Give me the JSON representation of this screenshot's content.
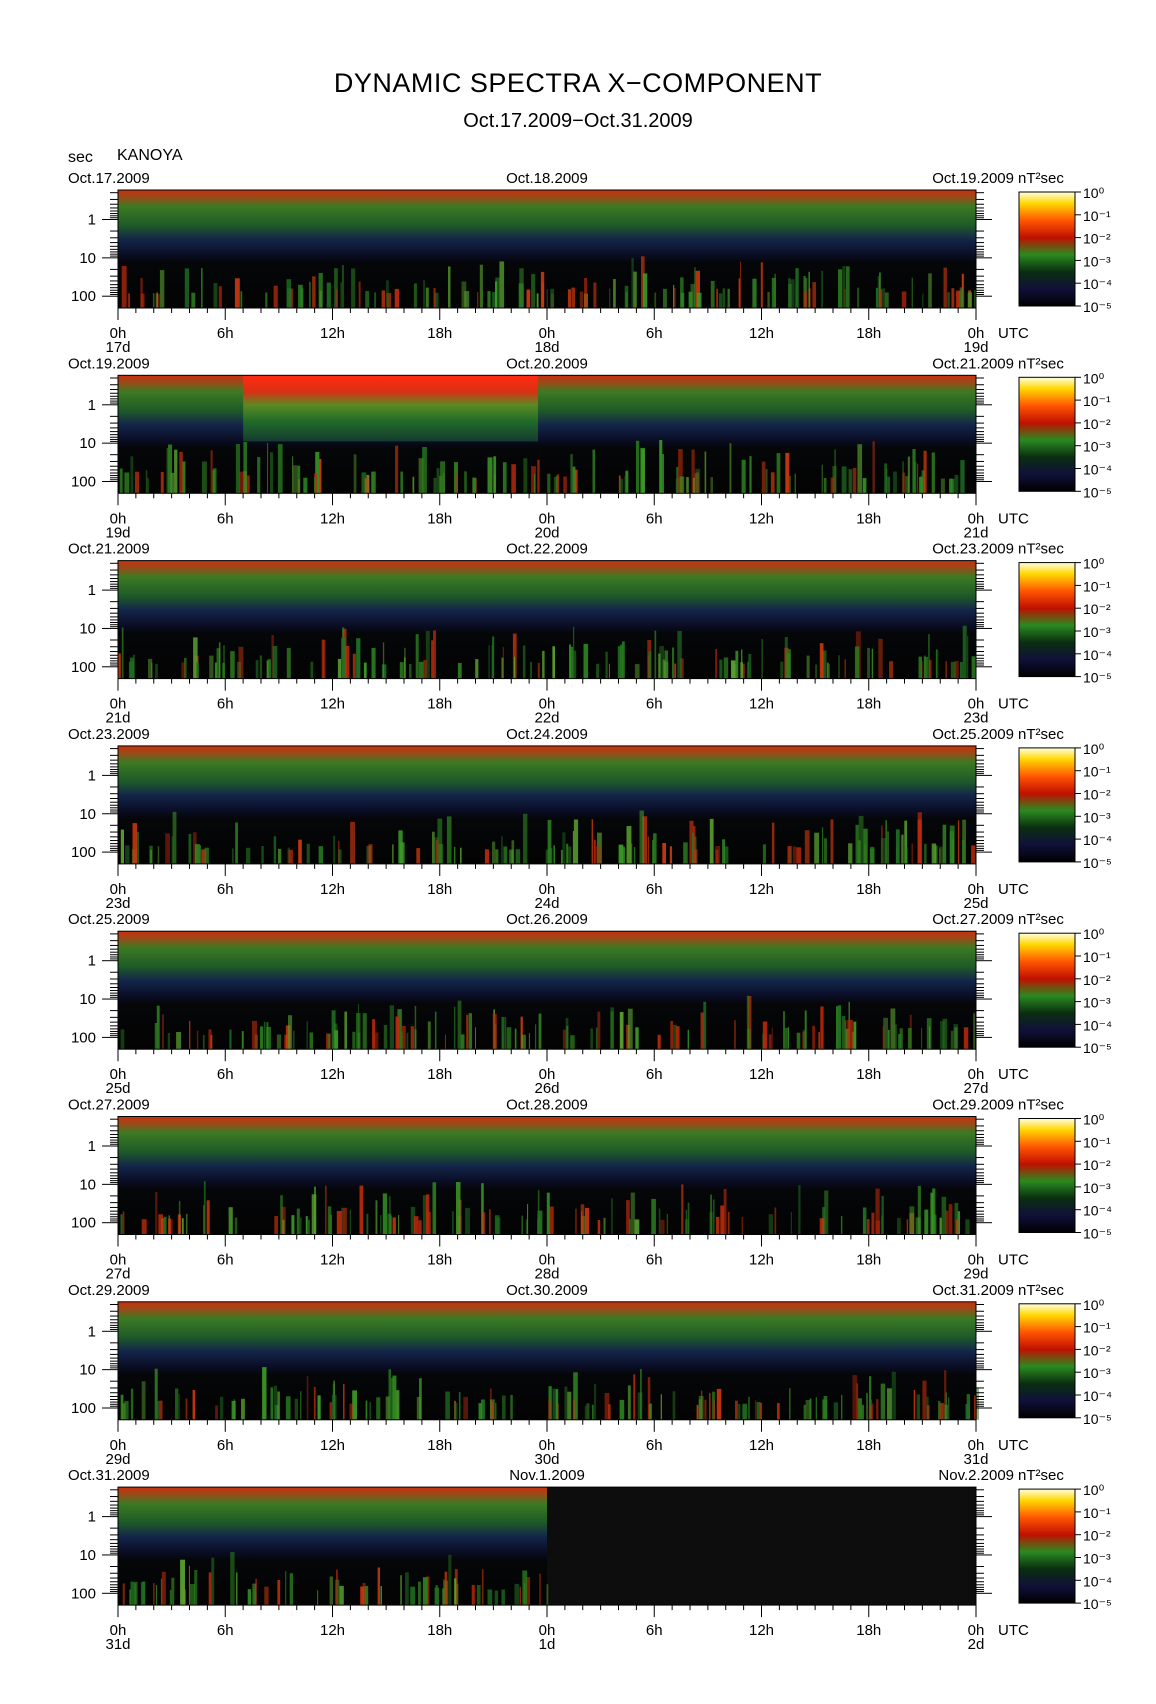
{
  "header": {
    "title": "DYNAMIC SPECTRA X−COMPONENT",
    "subtitle": "Oct.17.2009−Oct.31.2009",
    "units_label": "sec",
    "station": "KANOYA"
  },
  "chart_data": {
    "type": "heatmap",
    "title": "DYNAMIC SPECTRA X−COMPONENT",
    "subtitle": "Oct.17.2009−Oct.31.2009",
    "station": "KANOYA",
    "ylabel": "sec",
    "y_scale": "log",
    "y_ticks": [
      "1",
      "10",
      "100"
    ],
    "x_ticks": [
      "0h",
      "6h",
      "12h",
      "18h",
      "0h",
      "6h",
      "12h",
      "18h",
      "0h"
    ],
    "x_unit": "UTC",
    "colorbar": {
      "unit": "nT²sec",
      "ticks": [
        "10⁰",
        "10⁻¹",
        "10⁻²",
        "10⁻³",
        "10⁻⁴",
        "10⁻⁵"
      ],
      "colors": [
        "#ffffe0",
        "#ffd700",
        "#ff5500",
        "#c01000",
        "#2a8a20",
        "#0a2e10",
        "#10103a",
        "#000000"
      ]
    },
    "panels": [
      {
        "start": "Oct.17.2009",
        "mid": "Oct.18.2009",
        "end": "Oct.19.2009",
        "d0": "17d",
        "d1": "18d",
        "d2": "19d"
      },
      {
        "start": "Oct.19.2009",
        "mid": "Oct.20.2009",
        "end": "Oct.21.2009",
        "d0": "19d",
        "d1": "20d",
        "d2": "21d"
      },
      {
        "start": "Oct.21.2009",
        "mid": "Oct.22.2009",
        "end": "Oct.23.2009",
        "d0": "21d",
        "d1": "22d",
        "d2": "23d"
      },
      {
        "start": "Oct.23.2009",
        "mid": "Oct.24.2009",
        "end": "Oct.25.2009",
        "d0": "23d",
        "d1": "24d",
        "d2": "25d"
      },
      {
        "start": "Oct.25.2009",
        "mid": "Oct.26.2009",
        "end": "Oct.27.2009",
        "d0": "25d",
        "d1": "26d",
        "d2": "27d"
      },
      {
        "start": "Oct.27.2009",
        "mid": "Oct.28.2009",
        "end": "Oct.29.2009",
        "d0": "27d",
        "d1": "28d",
        "d2": "29d"
      },
      {
        "start": "Oct.29.2009",
        "mid": "Oct.30.2009",
        "end": "Oct.31.2009",
        "d0": "29d",
        "d1": "30d",
        "d2": "31d"
      },
      {
        "start": "Oct.31.2009",
        "mid": "Nov.1.2009",
        "end": "Nov.2.2009",
        "d0": "31d",
        "d1": "1d",
        "d2": "2d",
        "data_until_hours": 24
      }
    ]
  }
}
